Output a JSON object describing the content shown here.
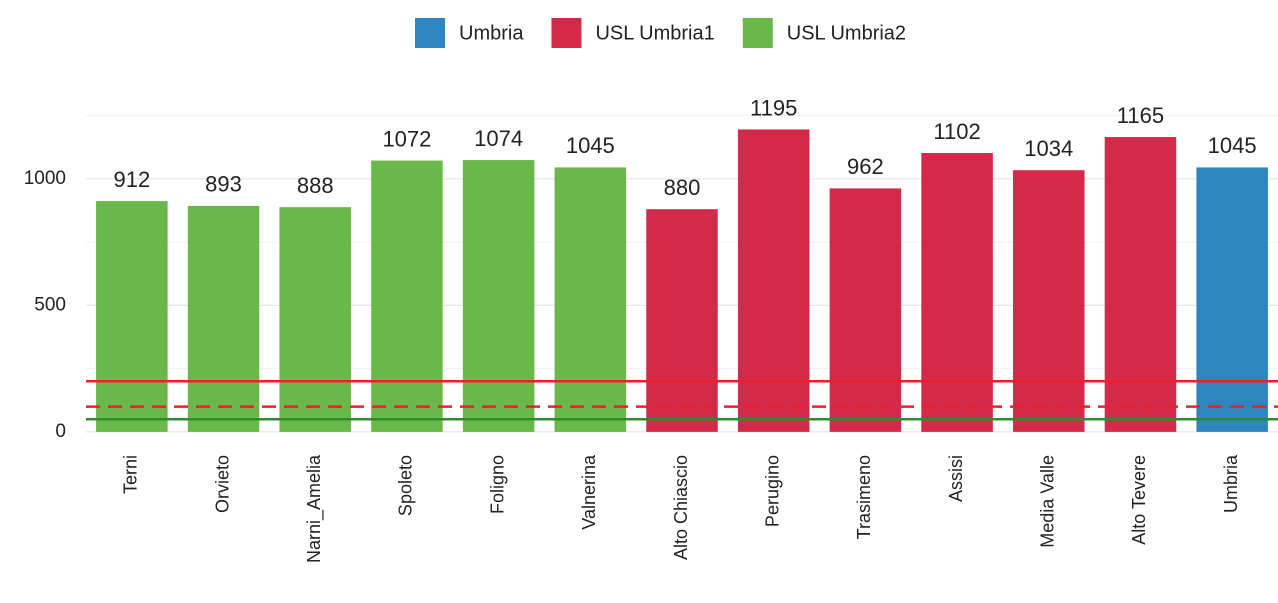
{
  "chart_data": {
    "type": "bar",
    "categories": [
      "Terni",
      "Orvieto",
      "Narni_Amelia",
      "Spoleto",
      "Foligno",
      "Valnerina",
      "Alto Chiascio",
      "Perugino",
      "Trasimeno",
      "Assisi",
      "Media Valle",
      "Alto Tevere",
      "Umbria"
    ],
    "series": [
      {
        "name": "Umbria",
        "color": "#2e86c1",
        "values": [
          null,
          null,
          null,
          null,
          null,
          null,
          null,
          null,
          null,
          null,
          null,
          null,
          1045
        ]
      },
      {
        "name": "USL Umbria1",
        "color": "#d42a4a",
        "values": [
          null,
          null,
          null,
          null,
          null,
          null,
          880,
          1195,
          962,
          1102,
          1034,
          1165,
          null
        ]
      },
      {
        "name": "USL Umbria2",
        "color": "#6ab84a",
        "values": [
          912,
          893,
          888,
          1072,
          1074,
          1045,
          null,
          null,
          null,
          null,
          null,
          null,
          null
        ]
      }
    ],
    "ylim": [
      -40,
      1260
    ],
    "yticks": [
      0,
      500,
      1000
    ],
    "yminor": [
      250,
      750,
      1250
    ],
    "grid": true,
    "reference_lines": [
      {
        "value": 200,
        "color": "#e8202a",
        "dashed": false
      },
      {
        "value": 100,
        "color": "#e8202a",
        "dashed": true
      },
      {
        "value": 50,
        "color": "#2e8b2e",
        "dashed": false
      }
    ],
    "legend": "top"
  }
}
